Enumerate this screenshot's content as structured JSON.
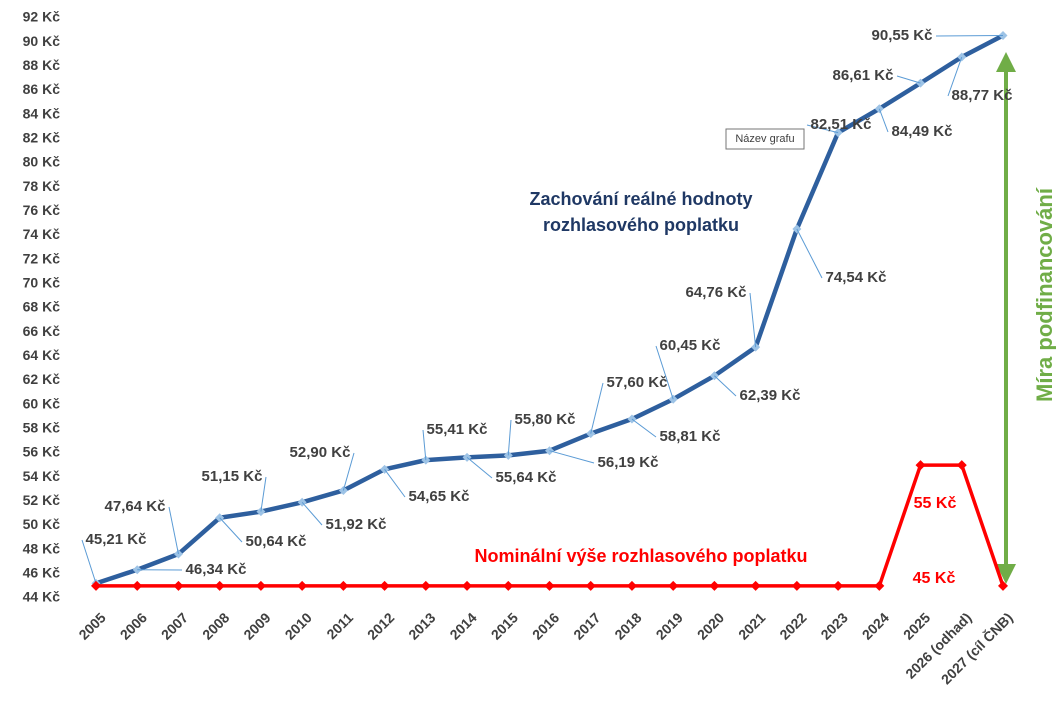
{
  "chart_data": {
    "type": "line",
    "categories": [
      "2005",
      "2006",
      "2007",
      "2008",
      "2009",
      "2010",
      "2011",
      "2012",
      "2013",
      "2014",
      "2015",
      "2016",
      "2017",
      "2018",
      "2019",
      "2020",
      "2021",
      "2022",
      "2023",
      "2024",
      "2025",
      "2026 (odhad)",
      "2027 (cíl ČNB)"
    ],
    "series": [
      {
        "name": "Zachování reálné hodnoty rozhlasového poplatku",
        "color": "#2e5f9e",
        "values": [
          45.21,
          46.34,
          47.64,
          50.64,
          51.15,
          51.92,
          52.9,
          54.65,
          55.41,
          55.64,
          55.8,
          56.19,
          57.6,
          58.81,
          60.45,
          62.39,
          64.76,
          74.54,
          82.51,
          84.49,
          86.61,
          88.77,
          90.55
        ],
        "value_labels": [
          "45,21 Kč",
          "46,34 Kč",
          "47,64 Kč",
          "50,64 Kč",
          "51,15 Kč",
          "51,92 Kč",
          "52,90 Kč",
          "54,65 Kč",
          "55,41 Kč",
          "55,64 Kč",
          "55,80 Kč",
          "56,19 Kč",
          "57,60 Kč",
          "58,81 Kč",
          "60,45 Kč",
          "62,39 Kč",
          "64,76 Kč",
          "74,54 Kč",
          "82,51 Kč",
          "84,49 Kč",
          "86,61 Kč",
          "88,77 Kč",
          "90,55 Kč"
        ]
      },
      {
        "name": "Nominální výše rozhlasového poplatku",
        "color": "#ff0000",
        "values": [
          45,
          45,
          45,
          45,
          45,
          45,
          45,
          45,
          45,
          45,
          45,
          45,
          45,
          45,
          45,
          45,
          45,
          45,
          45,
          45,
          55,
          55,
          45
        ],
        "value_labels": [
          null,
          null,
          null,
          null,
          null,
          null,
          null,
          null,
          null,
          null,
          null,
          null,
          null,
          null,
          null,
          null,
          null,
          null,
          null,
          null,
          "55 Kč",
          null,
          "45 Kč"
        ]
      }
    ],
    "ylim": [
      44,
      92
    ],
    "yticks": [
      {
        "value": 44,
        "label": "44 Kč"
      },
      {
        "value": 46,
        "label": "46 Kč"
      },
      {
        "value": 48,
        "label": "48 Kč"
      },
      {
        "value": 50,
        "label": "50 Kč"
      },
      {
        "value": 52,
        "label": "52 Kč"
      },
      {
        "value": 54,
        "label": "54 Kč"
      },
      {
        "value": 56,
        "label": "56 Kč"
      },
      {
        "value": 58,
        "label": "58 Kč"
      },
      {
        "value": 60,
        "label": "60 Kč"
      },
      {
        "value": 62,
        "label": "62 Kč"
      },
      {
        "value": 64,
        "label": "64 Kč"
      },
      {
        "value": 66,
        "label": "66 Kč"
      },
      {
        "value": 68,
        "label": "68 Kč"
      },
      {
        "value": 70,
        "label": "70 Kč"
      },
      {
        "value": 72,
        "label": "72 Kč"
      },
      {
        "value": 74,
        "label": "74 Kč"
      },
      {
        "value": 76,
        "label": "76 Kč"
      },
      {
        "value": 78,
        "label": "78 Kč"
      },
      {
        "value": 80,
        "label": "80 Kč"
      },
      {
        "value": 82,
        "label": "82 Kč"
      },
      {
        "value": 84,
        "label": "84 Kč"
      },
      {
        "value": 86,
        "label": "86 Kč"
      },
      {
        "value": 88,
        "label": "88 Kč"
      },
      {
        "value": 90,
        "label": "90 Kč"
      },
      {
        "value": 92,
        "label": "92 Kč"
      }
    ],
    "grid": false,
    "annotations": [
      "Míra podfinancování",
      "Název grafu"
    ]
  }
}
